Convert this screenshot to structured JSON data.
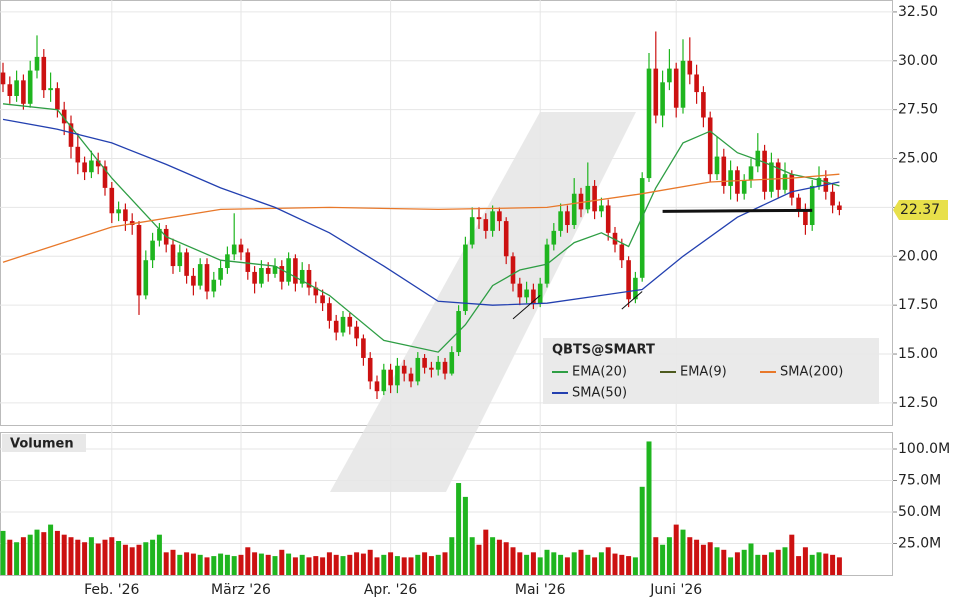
{
  "chart_data": {
    "type": "candlestick",
    "symbol": "QBTS@SMART",
    "volume_title": "Volumen",
    "ylim": [
      11.37,
      33.11
    ],
    "yticks": [
      {
        "value": 12.5,
        "label": "12.50"
      },
      {
        "value": 15,
        "label": "15.00"
      },
      {
        "value": 17.5,
        "label": "17.50"
      },
      {
        "value": 20,
        "label": "20.00"
      },
      {
        "value": 22.5,
        "label": "22.50"
      },
      {
        "value": 25,
        "label": "25.00"
      },
      {
        "value": 27.5,
        "label": "27.50"
      },
      {
        "value": 30,
        "label": "30.00"
      },
      {
        "value": 32.5,
        "label": "32.50"
      }
    ],
    "y2lim": [
      0,
      113.5
    ],
    "y2ticks": [
      {
        "value": 25,
        "label": "25.0M"
      },
      {
        "value": 50,
        "label": "50.0M"
      },
      {
        "value": 75,
        "label": "75.0M"
      },
      {
        "value": 100,
        "label": "100.0M"
      }
    ],
    "xlabels": [
      {
        "index": 16,
        "label": "Feb. '26"
      },
      {
        "index": 35,
        "label": "März '26"
      },
      {
        "index": 57,
        "label": "Apr. '26"
      },
      {
        "index": 79,
        "label": "Mai '26"
      },
      {
        "index": 99,
        "label": "Juni '26"
      }
    ],
    "up_color": "#1fb51f",
    "down_color": "#cc1111",
    "candles": {
      "open": [
        29.4,
        28.8,
        28.2,
        29.0,
        27.8,
        29.5,
        30.2,
        28.5,
        28.6,
        27.5,
        26.8,
        25.6,
        24.8,
        24.3,
        24.9,
        24.6,
        23.5,
        22.2,
        22.4,
        21.8,
        21.6,
        18.0,
        19.8,
        20.8,
        21.4,
        20.6,
        19.5,
        20.2,
        19.0,
        18.5,
        19.6,
        18.2,
        18.8,
        19.4,
        20.1,
        20.6,
        20.2,
        19.2,
        18.6,
        19.4,
        19.1,
        19.5,
        18.7,
        19.9,
        18.6,
        19.3,
        18.4,
        18.0,
        17.6,
        16.7,
        16.1,
        16.9,
        16.4,
        15.8,
        14.8,
        13.6,
        13.1,
        14.2,
        13.4,
        14.4,
        14.0,
        13.6,
        14.8,
        14.3,
        14.2,
        14.6,
        14.0,
        15.1,
        17.2,
        20.6,
        22.0,
        21.9,
        21.3,
        22.3,
        21.8,
        20.0,
        18.6,
        17.9,
        18.3,
        17.6,
        18.6,
        20.6,
        21.3,
        22.3,
        21.6,
        23.2,
        22.4,
        23.6,
        22.3,
        22.6,
        21.2,
        20.6,
        19.8,
        17.8,
        18.9,
        24.0,
        29.6,
        27.2,
        28.9,
        29.6,
        27.6,
        30.0,
        29.3,
        28.4,
        27.1,
        24.2,
        25.1,
        23.6,
        24.4,
        23.2,
        23.9,
        24.6,
        25.4,
        23.3,
        24.8,
        23.4,
        24.2,
        23.0,
        22.4,
        21.6,
        23.6,
        24.0,
        23.3,
        22.6
      ],
      "high": [
        29.9,
        29.2,
        29.5,
        29.3,
        30.0,
        31.3,
        30.6,
        29.4,
        28.9,
        27.9,
        27.2,
        26.3,
        25.1,
        25.4,
        25.3,
        24.9,
        23.8,
        22.8,
        22.7,
        22.2,
        21.8,
        20.3,
        21.2,
        21.7,
        21.6,
        20.9,
        20.6,
        20.4,
        19.4,
        19.9,
        19.9,
        19.2,
        19.8,
        20.5,
        22.2,
        20.9,
        20.4,
        19.5,
        19.8,
        19.7,
        19.9,
        19.8,
        20.2,
        20.1,
        19.7,
        19.6,
        18.7,
        18.3,
        17.9,
        17.0,
        17.2,
        17.1,
        16.7,
        16.0,
        15.1,
        13.9,
        14.5,
        14.5,
        14.8,
        14.7,
        14.3,
        15.1,
        15.0,
        14.6,
        14.9,
        14.8,
        15.4,
        17.5,
        21.0,
        22.5,
        22.5,
        22.2,
        22.6,
        22.5,
        22.0,
        20.2,
        18.9,
        18.7,
        18.6,
        18.9,
        20.9,
        21.7,
        22.7,
        22.6,
        24.0,
        23.5,
        24.8,
        23.9,
        23.0,
        22.9,
        21.5,
        20.9,
        20.0,
        19.2,
        24.3,
        30.4,
        31.5,
        29.5,
        30.6,
        29.9,
        31.1,
        31.2,
        29.8,
        28.7,
        27.4,
        26.1,
        25.5,
        24.9,
        24.6,
        24.2,
        25.0,
        26.3,
        25.7,
        25.3,
        25.0,
        24.8,
        24.4,
        23.2,
        22.7,
        23.9,
        24.6,
        24.4,
        23.7,
        22.8
      ],
      "low": [
        28.4,
        27.8,
        27.9,
        27.5,
        27.6,
        29.1,
        28.1,
        27.9,
        27.1,
        26.2,
        25.0,
        24.2,
        23.9,
        24.0,
        24.2,
        23.1,
        21.7,
        21.8,
        21.3,
        21.1,
        17.0,
        17.8,
        19.4,
        20.5,
        20.2,
        19.1,
        19.2,
        18.6,
        18.0,
        18.3,
        17.8,
        17.9,
        18.5,
        19.1,
        19.8,
        19.8,
        18.8,
        18.1,
        18.4,
        18.7,
        18.9,
        18.3,
        18.5,
        18.2,
        18.4,
        18.0,
        17.6,
        17.2,
        16.3,
        15.7,
        15.9,
        16.0,
        15.4,
        14.4,
        13.2,
        12.7,
        12.9,
        13.0,
        13.0,
        13.6,
        13.3,
        13.4,
        14.0,
        13.8,
        13.9,
        13.7,
        13.9,
        14.9,
        17.0,
        20.4,
        21.4,
        20.9,
        21.0,
        21.3,
        19.6,
        18.2,
        17.5,
        17.6,
        17.3,
        17.4,
        18.4,
        20.3,
        21.0,
        21.2,
        21.4,
        22.0,
        22.2,
        21.9,
        22.0,
        20.8,
        20.2,
        19.4,
        17.4,
        17.6,
        18.7,
        23.8,
        26.8,
        26.6,
        28.5,
        27.1,
        27.3,
        28.8,
        27.8,
        26.6,
        23.8,
        23.9,
        23.2,
        22.9,
        22.8,
        22.9,
        23.5,
        24.3,
        22.9,
        23.0,
        23.0,
        23.2,
        22.6,
        22.0,
        21.1,
        21.3,
        23.4,
        22.9,
        22.2,
        22.1
      ],
      "close": [
        28.8,
        28.2,
        29.0,
        27.8,
        29.5,
        30.2,
        28.5,
        28.6,
        27.5,
        26.8,
        25.6,
        24.8,
        24.3,
        24.9,
        24.6,
        23.5,
        22.2,
        22.4,
        21.8,
        21.6,
        18.0,
        19.8,
        20.8,
        21.4,
        20.6,
        19.5,
        20.2,
        19.0,
        18.5,
        19.6,
        18.2,
        18.8,
        19.4,
        20.1,
        20.6,
        20.2,
        19.2,
        18.6,
        19.4,
        19.1,
        19.5,
        18.7,
        19.9,
        18.6,
        19.3,
        18.4,
        18.0,
        17.6,
        16.7,
        16.1,
        16.9,
        16.4,
        15.8,
        14.8,
        13.6,
        13.1,
        14.2,
        13.4,
        14.4,
        14.0,
        13.6,
        14.8,
        14.3,
        14.2,
        14.6,
        14.0,
        15.1,
        17.2,
        20.6,
        22.0,
        21.9,
        21.3,
        22.3,
        21.8,
        20.0,
        18.6,
        17.9,
        18.3,
        17.6,
        18.6,
        20.6,
        21.3,
        22.3,
        21.6,
        23.2,
        22.4,
        23.6,
        22.3,
        22.6,
        21.2,
        20.6,
        19.8,
        17.8,
        18.9,
        24.0,
        29.6,
        27.2,
        28.9,
        29.6,
        27.6,
        30.0,
        29.3,
        28.4,
        27.1,
        24.2,
        25.1,
        23.6,
        24.4,
        23.2,
        23.9,
        24.6,
        25.4,
        23.3,
        24.8,
        23.4,
        24.2,
        23.0,
        22.4,
        21.6,
        23.6,
        24.0,
        23.3,
        22.6,
        22.37
      ]
    },
    "volume": [
      35,
      28,
      26,
      30,
      32,
      36,
      34,
      40,
      35,
      32,
      30,
      28,
      26,
      30,
      25,
      28,
      30,
      27,
      24,
      22,
      24,
      26,
      28,
      32,
      18,
      20,
      16,
      18,
      17,
      16,
      14,
      15,
      17,
      16,
      15,
      16,
      22,
      18,
      17,
      16,
      15,
      20,
      17,
      14,
      16,
      14,
      15,
      14,
      18,
      16,
      15,
      16,
      18,
      17,
      20,
      14,
      16,
      18,
      15,
      14,
      14,
      16,
      18,
      15,
      16,
      18,
      30,
      73,
      62,
      30,
      24,
      36,
      30,
      28,
      26,
      22,
      18,
      16,
      18,
      14,
      20,
      18,
      16,
      14,
      18,
      20,
      16,
      14,
      18,
      22,
      17,
      16,
      15,
      14,
      70,
      106,
      30,
      24,
      30,
      40,
      36,
      30,
      28,
      24,
      26,
      22,
      20,
      14,
      18,
      20,
      25,
      16,
      16,
      18,
      20,
      22,
      32,
      15,
      22,
      16,
      18,
      17,
      16,
      14
    ],
    "series": [
      {
        "name": "EMA(20)",
        "color": "#2e9e44",
        "x": [
          0,
          8,
          16,
          24,
          32,
          40,
          48,
          56,
          64,
          68,
          72,
          76,
          80,
          84,
          88,
          92,
          96,
          100,
          104,
          108,
          112,
          116,
          120,
          123
        ],
        "values": [
          27.8,
          27.5,
          24.0,
          21.0,
          19.8,
          19.5,
          18.0,
          15.7,
          15.1,
          16.5,
          18.5,
          19.3,
          19.6,
          20.7,
          21.2,
          20.5,
          23.5,
          25.8,
          26.4,
          25.3,
          24.8,
          24.2,
          23.9,
          23.6
        ]
      },
      {
        "name": "EMA(9)",
        "color": "#4d5a1e",
        "x": [],
        "values": []
      },
      {
        "name": "SMA(200)",
        "color": "#e8782a",
        "x": [
          0,
          16,
          32,
          48,
          64,
          80,
          94,
          104,
          116,
          123
        ],
        "values": [
          19.7,
          21.5,
          22.4,
          22.5,
          22.4,
          22.5,
          23.2,
          23.8,
          24.0,
          24.2
        ]
      },
      {
        "name": "SMA(50)",
        "color": "#2340b0",
        "x": [
          0,
          8,
          16,
          24,
          32,
          40,
          48,
          56,
          64,
          72,
          80,
          88,
          94,
          100,
          108,
          116,
          123
        ],
        "values": [
          27.0,
          26.5,
          25.8,
          24.7,
          23.5,
          22.5,
          21.2,
          19.5,
          17.7,
          17.5,
          17.6,
          18.0,
          18.3,
          20.0,
          22.0,
          23.3,
          23.8
        ]
      }
    ],
    "trendlines": [
      {
        "x": [
          97,
          119
        ],
        "values": [
          22.3,
          22.35
        ]
      },
      {
        "x": [
          75,
          79
        ],
        "values": [
          16.8,
          18.0
        ]
      },
      {
        "x": [
          91,
          94
        ],
        "values": [
          17.3,
          18.2
        ]
      }
    ]
  }
}
